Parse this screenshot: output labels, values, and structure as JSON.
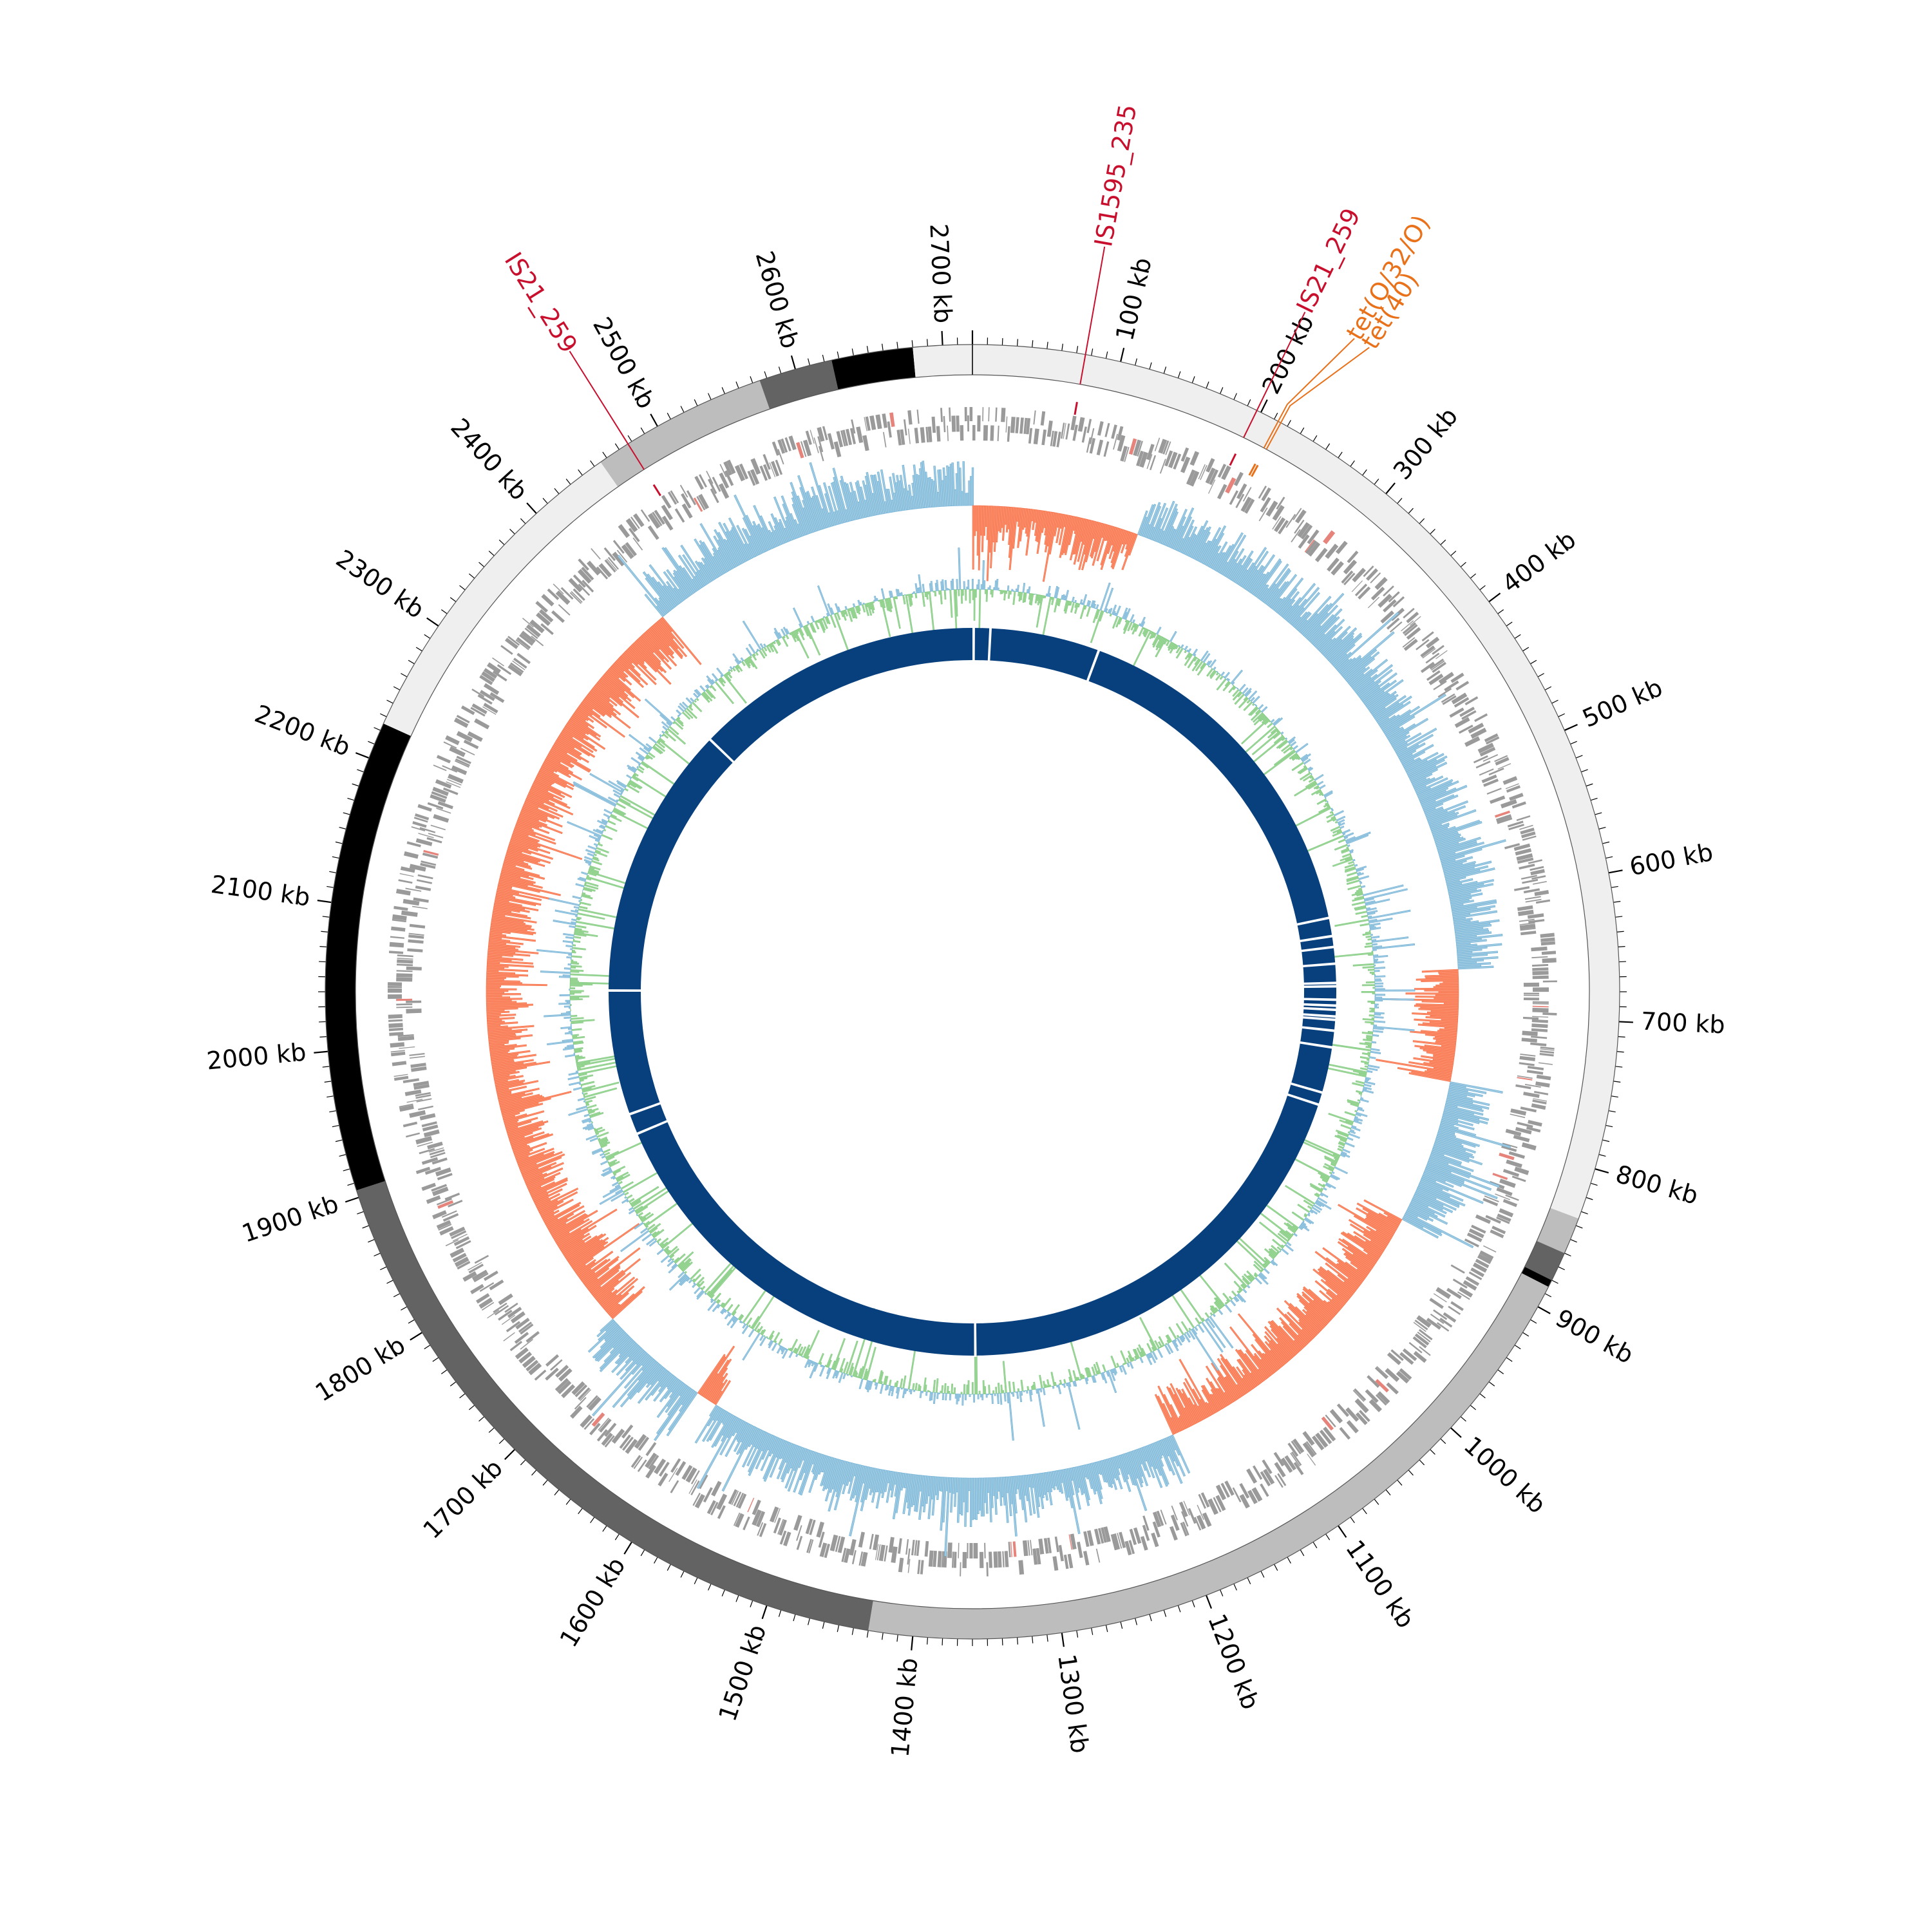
{
  "chart_data": {
    "type": "circular-genome-map",
    "title": "",
    "genome_length_kb": 2720,
    "start_position_kb": 0,
    "direction": "clockwise",
    "tick_unit": "kb",
    "tick_labels_kb": [
      100,
      200,
      300,
      400,
      500,
      600,
      700,
      800,
      900,
      1000,
      1100,
      1200,
      1300,
      1400,
      1500,
      1600,
      1700,
      1800,
      1900,
      2000,
      2100,
      2200,
      2300,
      2400,
      2500,
      2600,
      2700
    ],
    "tick_label_suffix": " kb",
    "contig_blocks": [
      {
        "start_kb": 0,
        "end_kb": 835,
        "color": "#efefef"
      },
      {
        "start_kb": 835,
        "end_kb": 860,
        "color": "#bdbdbd"
      },
      {
        "start_kb": 860,
        "end_kb": 880,
        "color": "#636363"
      },
      {
        "start_kb": 880,
        "end_kb": 885,
        "color": "#000000"
      },
      {
        "start_kb": 885,
        "end_kb": 1430,
        "color": "#bdbdbd"
      },
      {
        "start_kb": 1430,
        "end_kb": 1905,
        "color": "#636363"
      },
      {
        "start_kb": 1905,
        "end_kb": 2225,
        "color": "#000000"
      },
      {
        "start_kb": 2225,
        "end_kb": 2455,
        "color": "#efefef"
      },
      {
        "start_kb": 2455,
        "end_kb": 2575,
        "color": "#bdbdbd"
      },
      {
        "start_kb": 2575,
        "end_kb": 2625,
        "color": "#636363"
      },
      {
        "start_kb": 2625,
        "end_kb": 2680,
        "color": "#000000"
      },
      {
        "start_kb": 2680,
        "end_kb": 2720,
        "color": "#efefef"
      }
    ],
    "annotations": [
      {
        "label": "IS1595_235",
        "position_kb": 76,
        "color": "#c8102e"
      },
      {
        "label": "IS21_259",
        "position_kb": 197,
        "color": "#c8102e"
      },
      {
        "label": "tet(O/32/O)",
        "position_kb": 213,
        "color": "#e8711a"
      },
      {
        "label": "tet(40)",
        "position_kb": 215,
        "color": "#e8711a"
      },
      {
        "label": "IS21_259",
        "position_kb": 2477,
        "color": "#c8102e"
      }
    ],
    "gc_skew_segments": [
      {
        "start_kb": 0,
        "end_kb": 150,
        "sign": "negative"
      },
      {
        "start_kb": 150,
        "end_kb": 660,
        "sign": "positive"
      },
      {
        "start_kb": 660,
        "end_kb": 760,
        "sign": "negative"
      },
      {
        "start_kb": 760,
        "end_kb": 890,
        "sign": "positive"
      },
      {
        "start_kb": 890,
        "end_kb": 1175,
        "sign": "negative"
      },
      {
        "start_kb": 1175,
        "end_kb": 1600,
        "sign": "positive"
      },
      {
        "start_kb": 1600,
        "end_kb": 1620,
        "sign": "negative"
      },
      {
        "start_kb": 1620,
        "end_kb": 1720,
        "sign": "positive"
      },
      {
        "start_kb": 1720,
        "end_kb": 2420,
        "sign": "negative"
      },
      {
        "start_kb": 2420,
        "end_kb": 2720,
        "sign": "positive"
      }
    ],
    "inner_ring_gaps_kb": [
      0,
      20,
      152,
      590,
      612,
      625,
      645,
      668,
      672,
      688,
      695,
      700,
      708,
      712,
      725,
      745,
      800,
      815,
      1355,
      1865,
      1890,
      2040,
      2370
    ],
    "series": [
      {
        "name": "contigs",
        "color": "#bdbdbd"
      },
      {
        "name": "CDS",
        "color": "#9a9a9a"
      },
      {
        "name": "GC skew +",
        "color": "#9ecae1"
      },
      {
        "name": "GC skew -",
        "color": "#fc8d6b"
      },
      {
        "name": "GC content",
        "color": "#74c476"
      },
      {
        "name": "core genome",
        "color": "#08407e"
      }
    ]
  }
}
